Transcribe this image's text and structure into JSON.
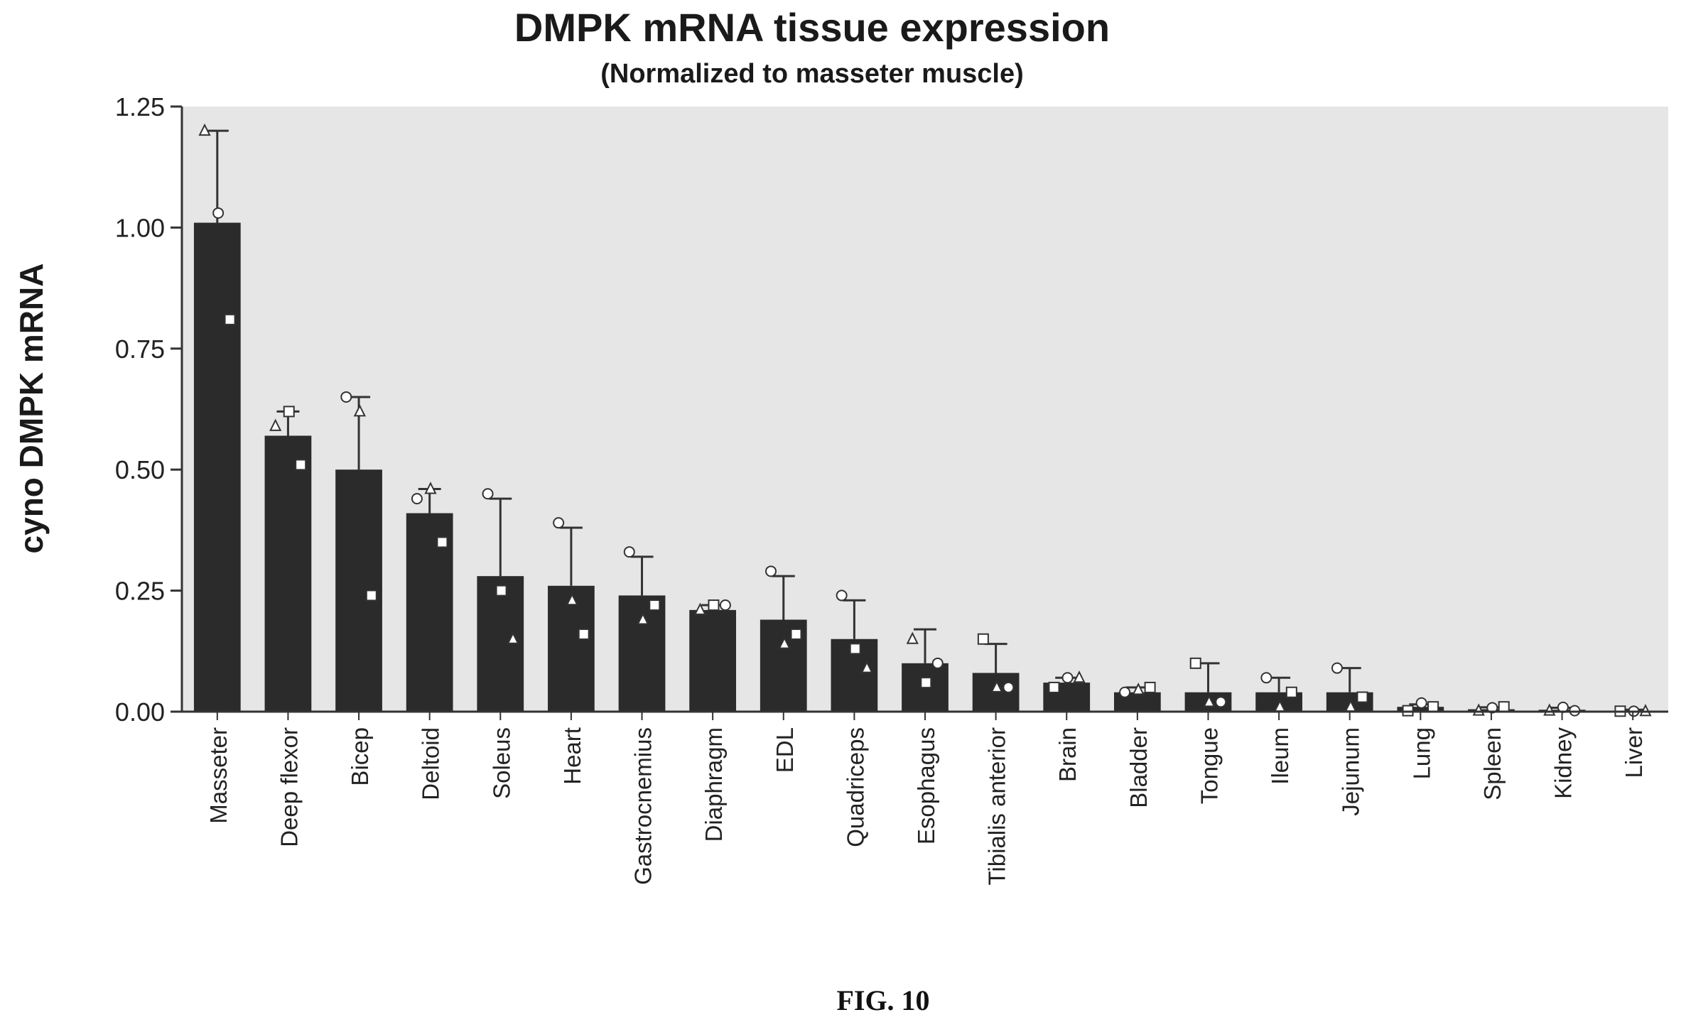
{
  "figure_caption": "FIG. 10",
  "colors": {
    "bar": "#2b2b2b",
    "plot_background": "#e6e6e6",
    "axis": "#333333",
    "text": "#222222",
    "marker_fill": "#ffffff"
  },
  "chart_data": {
    "type": "bar",
    "title": "DMPK mRNA tissue expression",
    "subtitle": "(Normalized to masseter muscle)",
    "xlabel": "",
    "ylabel": "cyno DMPK mRNA",
    "ylim": [
      0,
      1.25
    ],
    "yticks": [
      0.0,
      0.25,
      0.5,
      0.75,
      1.0,
      1.25
    ],
    "ytick_labels": [
      "0.00",
      "0.25",
      "0.50",
      "0.75",
      "1.00",
      "1.25"
    ],
    "grid": false,
    "legend": "none",
    "categories": [
      "Masseter",
      "Deep flexor",
      "Bicep",
      "Deltoid",
      "Soleus",
      "Heart",
      "Gastrocnemius",
      "Diaphragm",
      "EDL",
      "Quadriceps",
      "Esophagus",
      "Tibialis anterior",
      "Brain",
      "Bladder",
      "Tongue",
      "Ileum",
      "Jejunum",
      "Lung",
      "Spleen",
      "Kidney",
      "Liver"
    ],
    "values": [
      1.01,
      0.57,
      0.5,
      0.41,
      0.28,
      0.26,
      0.24,
      0.21,
      0.19,
      0.15,
      0.1,
      0.08,
      0.06,
      0.04,
      0.04,
      0.04,
      0.04,
      0.01,
      0.005,
      0.004,
      0.002
    ],
    "error_upper": [
      1.2,
      0.62,
      0.65,
      0.46,
      0.44,
      0.38,
      0.32,
      0.22,
      0.28,
      0.23,
      0.17,
      0.14,
      0.07,
      0.05,
      0.1,
      0.07,
      0.09,
      0.015,
      0.009,
      0.008,
      0.004
    ],
    "points": [
      [
        {
          "shape": "triangle",
          "y": 1.2
        },
        {
          "shape": "circle",
          "y": 1.03
        },
        {
          "shape": "square",
          "y": 0.81
        }
      ],
      [
        {
          "shape": "triangle",
          "y": 0.59
        },
        {
          "shape": "square",
          "y": 0.62
        },
        {
          "shape": "square",
          "y": 0.51
        }
      ],
      [
        {
          "shape": "circle",
          "y": 0.65
        },
        {
          "shape": "triangle",
          "y": 0.62
        },
        {
          "shape": "square",
          "y": 0.24
        }
      ],
      [
        {
          "shape": "circle",
          "y": 0.44
        },
        {
          "shape": "triangle",
          "y": 0.46
        },
        {
          "shape": "square",
          "y": 0.35
        }
      ],
      [
        {
          "shape": "circle",
          "y": 0.45
        },
        {
          "shape": "square",
          "y": 0.25
        },
        {
          "shape": "triangle",
          "y": 0.15
        }
      ],
      [
        {
          "shape": "circle",
          "y": 0.39
        },
        {
          "shape": "triangle",
          "y": 0.23
        },
        {
          "shape": "square",
          "y": 0.16
        }
      ],
      [
        {
          "shape": "circle",
          "y": 0.33
        },
        {
          "shape": "triangle",
          "y": 0.19
        },
        {
          "shape": "square",
          "y": 0.22
        }
      ],
      [
        {
          "shape": "triangle",
          "y": 0.21
        },
        {
          "shape": "square",
          "y": 0.22
        },
        {
          "shape": "circle",
          "y": 0.22
        }
      ],
      [
        {
          "shape": "circle",
          "y": 0.29
        },
        {
          "shape": "triangle",
          "y": 0.14
        },
        {
          "shape": "square",
          "y": 0.16
        }
      ],
      [
        {
          "shape": "circle",
          "y": 0.24
        },
        {
          "shape": "square",
          "y": 0.13
        },
        {
          "shape": "triangle",
          "y": 0.09
        }
      ],
      [
        {
          "shape": "triangle",
          "y": 0.15
        },
        {
          "shape": "square",
          "y": 0.06
        },
        {
          "shape": "circle",
          "y": 0.1
        }
      ],
      [
        {
          "shape": "square",
          "y": 0.15
        },
        {
          "shape": "triangle",
          "y": 0.05
        },
        {
          "shape": "circle",
          "y": 0.05
        }
      ],
      [
        {
          "shape": "square",
          "y": 0.05
        },
        {
          "shape": "circle",
          "y": 0.07
        },
        {
          "shape": "triangle",
          "y": 0.07
        }
      ],
      [
        {
          "shape": "circle",
          "y": 0.04
        },
        {
          "shape": "triangle",
          "y": 0.045
        },
        {
          "shape": "square",
          "y": 0.05
        }
      ],
      [
        {
          "shape": "square",
          "y": 0.1
        },
        {
          "shape": "triangle",
          "y": 0.02
        },
        {
          "shape": "circle",
          "y": 0.02
        }
      ],
      [
        {
          "shape": "circle",
          "y": 0.07
        },
        {
          "shape": "triangle",
          "y": 0.01
        },
        {
          "shape": "square",
          "y": 0.04
        }
      ],
      [
        {
          "shape": "circle",
          "y": 0.09
        },
        {
          "shape": "triangle",
          "y": 0.01
        },
        {
          "shape": "square",
          "y": 0.03
        }
      ],
      [
        {
          "shape": "square",
          "y": 0.002
        },
        {
          "shape": "circle",
          "y": 0.018
        },
        {
          "shape": "square",
          "y": 0.01
        }
      ],
      [
        {
          "shape": "triangle",
          "y": 0.002
        },
        {
          "shape": "circle",
          "y": 0.008
        },
        {
          "shape": "square",
          "y": 0.01
        }
      ],
      [
        {
          "shape": "triangle",
          "y": 0.002
        },
        {
          "shape": "circle",
          "y": 0.009
        },
        {
          "shape": "circle",
          "y": 0.002
        }
      ],
      [
        {
          "shape": "square",
          "y": 0.001
        },
        {
          "shape": "circle",
          "y": 0.001
        },
        {
          "shape": "triangle",
          "y": 0.001
        }
      ]
    ]
  }
}
